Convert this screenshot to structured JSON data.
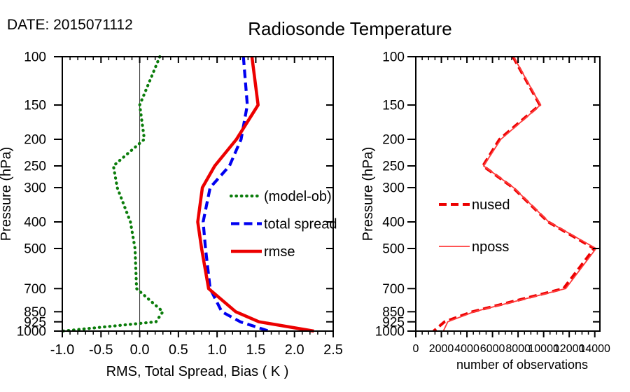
{
  "header": {
    "date_label": "DATE: 2015071112",
    "title": "Radiosonde Temperature"
  },
  "chart_data": [
    {
      "id": "rms-spread-bias",
      "type": "line",
      "title": "Radiosonde Temperature",
      "xlabel": "RMS, Total Spread, Bias ( K )",
      "ylabel": "Pressure (hPa)",
      "xlim": [
        -1.0,
        2.5
      ],
      "x_major_ticks": [
        -1.0,
        -0.5,
        0.0,
        0.5,
        1.0,
        1.5,
        2.0,
        2.5
      ],
      "x_tick_labels": [
        "-1.0",
        "-0.5",
        "0.0",
        "0.5",
        "1.0",
        "1.5",
        "2.0",
        "2.5"
      ],
      "x_minor_step": 0.1,
      "x_major_step": 0.5,
      "y_scale": "log",
      "ylim": [
        100,
        1000
      ],
      "y_ticks": [
        100,
        150,
        200,
        250,
        300,
        400,
        500,
        700,
        850,
        925,
        1000
      ],
      "y_tick_labels": [
        "100",
        "150",
        "200",
        "250",
        "300",
        "400",
        "500",
        "700",
        "850",
        "925",
        "1000"
      ],
      "zero_line": true,
      "grid": false,
      "legend_position": "inside-center-right",
      "series": [
        {
          "name": "(model-ob)",
          "color": "#0a7c0a",
          "style": "dotted",
          "width": 4.2,
          "values": [
            0.26,
            0.0,
            0.06,
            -0.34,
            -0.29,
            -0.12,
            -0.06,
            -0.04,
            0.3,
            0.21,
            -1.0
          ]
        },
        {
          "name": "total spread",
          "color": "#0000f0",
          "style": "dashed",
          "width": 4.2,
          "values": [
            1.34,
            1.39,
            1.31,
            1.16,
            0.91,
            0.82,
            0.85,
            0.91,
            1.06,
            1.3,
            1.67
          ]
        },
        {
          "name": "rmse",
          "color": "#ec0000",
          "style": "solid",
          "width": 4.5,
          "values": [
            1.45,
            1.53,
            1.25,
            0.97,
            0.81,
            0.75,
            0.8,
            0.89,
            1.24,
            1.54,
            2.25
          ]
        }
      ]
    },
    {
      "id": "observation-counts",
      "type": "line",
      "title": "",
      "xlabel": "number of observations",
      "ylabel": "Pressure (hPa)",
      "xlim": [
        0,
        14400
      ],
      "x_major_ticks": [
        0,
        2000,
        4000,
        6000,
        8000,
        10000,
        12000,
        14000
      ],
      "x_tick_labels": [
        "0",
        "2000",
        "4000",
        "6000",
        "8000",
        "10000",
        "12000",
        "14000"
      ],
      "x_minor_step": 500,
      "x_major_step": 2000,
      "y_scale": "log",
      "ylim": [
        100,
        1000
      ],
      "y_ticks": [
        100,
        150,
        200,
        250,
        300,
        400,
        500,
        700,
        850,
        925,
        1000
      ],
      "y_tick_labels": [
        "100",
        "150",
        "200",
        "250",
        "300",
        "400",
        "500",
        "700",
        "850",
        "925",
        "1000"
      ],
      "zero_line": false,
      "grid": false,
      "legend_position": "inside-center-left",
      "series": [
        {
          "name": "nused",
          "color": "#ec0000",
          "style": "dashed",
          "width": 4.0,
          "values": [
            7600,
            9700,
            6550,
            5250,
            7600,
            10350,
            13950,
            11550,
            4430,
            2250,
            1390
          ]
        },
        {
          "name": "nposs",
          "color": "#ff3b3b",
          "style": "solid",
          "width": 1.8,
          "values": [
            7650,
            9750,
            6650,
            5300,
            7650,
            10400,
            14100,
            11720,
            4560,
            2500,
            2150
          ]
        }
      ]
    }
  ]
}
